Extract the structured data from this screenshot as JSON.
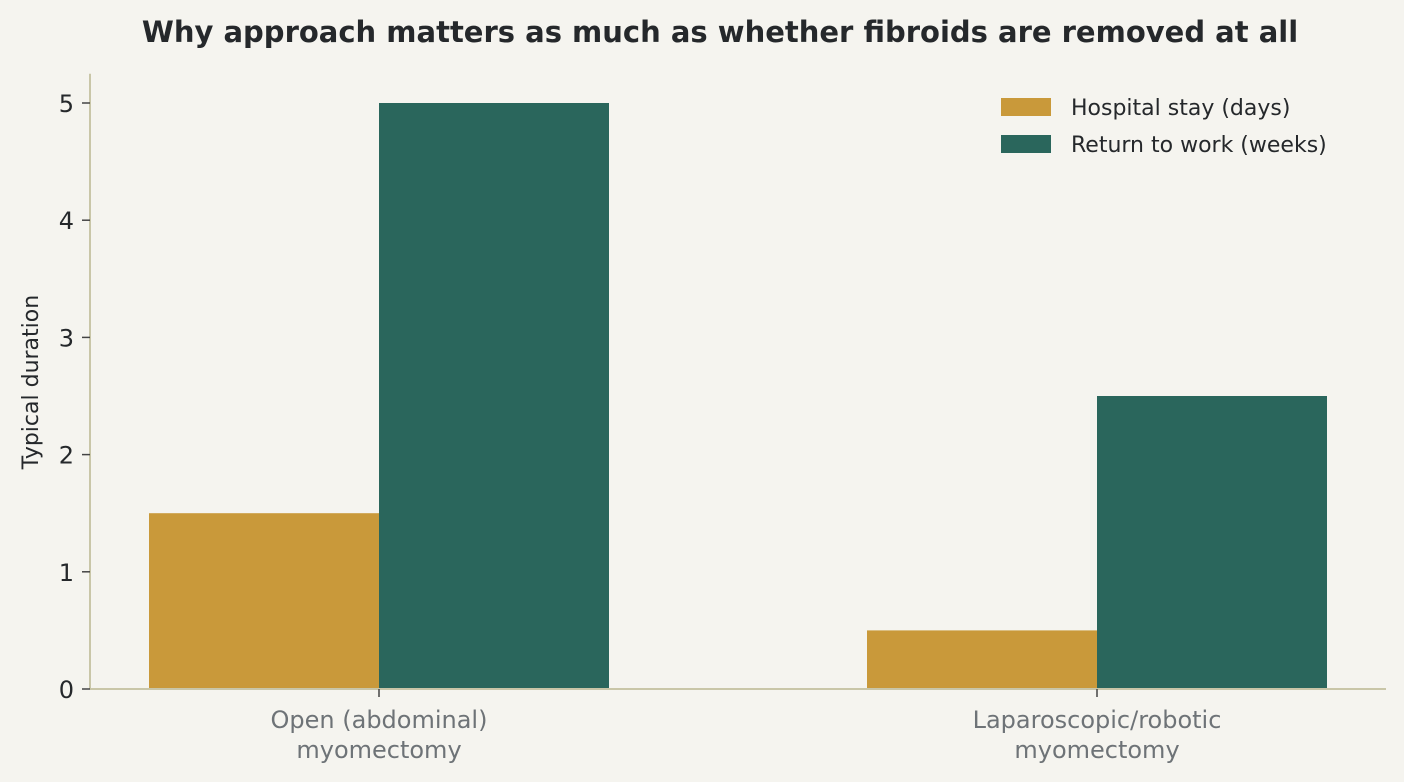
{
  "chart_data": {
    "type": "bar",
    "title": "Why approach matters as much as whether fibroids are removed at all",
    "xlabel": "",
    "ylabel": "Typical duration",
    "ylim": [
      0,
      5.25
    ],
    "yticks": [
      0,
      1,
      2,
      3,
      4,
      5
    ],
    "grid": false,
    "legend_position": "top-right",
    "categories": [
      [
        "Open (abdominal)",
        "myomectomy"
      ],
      [
        "Laparoscopic/robotic",
        "myomectomy"
      ]
    ],
    "series": [
      {
        "name": "Hospital stay (days)",
        "color": "#c9993a",
        "values": [
          1.5,
          0.5
        ]
      },
      {
        "name": "Return to work (weeks)",
        "color": "#2a665c",
        "values": [
          5,
          2.5
        ]
      }
    ]
  }
}
